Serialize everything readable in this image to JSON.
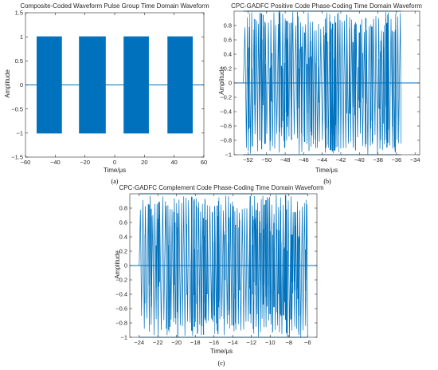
{
  "figure": {
    "captions": [
      "(a)",
      "(b)",
      "(c)"
    ]
  },
  "colors": {
    "signal": "#0072BD",
    "axis": "#262626",
    "background": "#ffffff"
  },
  "chart_data": [
    {
      "type": "line",
      "title": "Composite-Coded Waveform Pulse Group Time Domain Waveform",
      "xlabel": "Time/μs",
      "ylabel": "Amplitude",
      "xlim": [
        -60,
        60
      ],
      "ylim": [
        -1.5,
        1.5
      ],
      "xticks": [
        -60,
        -40,
        -20,
        0,
        20,
        40,
        60
      ],
      "yticks": [
        -1.5,
        -1,
        -0.5,
        0,
        0.5,
        1,
        1.5
      ],
      "grid": false,
      "baseline": 0,
      "pulse_amplitude": 1,
      "pulses": [
        {
          "start": -52.5,
          "end": -35.5
        },
        {
          "start": -24,
          "end": -6
        },
        {
          "start": 6,
          "end": 23
        },
        {
          "start": 35.5,
          "end": 52.5
        }
      ]
    },
    {
      "type": "line",
      "title": "CPC-GADFC Positive Code Phase-Coding Time Domain Waveform",
      "xlabel": "Time/μs",
      "ylabel": "Amplitude",
      "xlim": [
        -53.5,
        -33.5
      ],
      "ylim": [
        -1,
        1
      ],
      "xticks": [
        -52,
        -50,
        -48,
        -46,
        -44,
        -42,
        -40,
        -38,
        -36,
        -34
      ],
      "yticks": [
        -1,
        -0.8,
        -0.6,
        -0.4,
        -0.2,
        0,
        0.2,
        0.4,
        0.6,
        0.8
      ],
      "grid": false,
      "baseline": 0,
      "signal_interval": [
        -52.5,
        -35.5
      ],
      "pulse_amplitude": 1
    },
    {
      "type": "line",
      "title": "CPC-GADFC Complement Code Phase-Coding Time Domain Waveform",
      "xlabel": "Time/μs",
      "ylabel": "Amplitude",
      "xlim": [
        -25,
        -5
      ],
      "ylim": [
        -1,
        1
      ],
      "xticks": [
        -24,
        -22,
        -20,
        -18,
        -16,
        -14,
        -12,
        -10,
        -8,
        -6
      ],
      "yticks": [
        -1,
        -0.8,
        -0.6,
        -0.4,
        -0.2,
        0,
        0.2,
        0.4,
        0.6,
        0.8
      ],
      "grid": false,
      "baseline": 0,
      "signal_interval": [
        -24,
        -6
      ],
      "pulse_amplitude": 1
    }
  ]
}
